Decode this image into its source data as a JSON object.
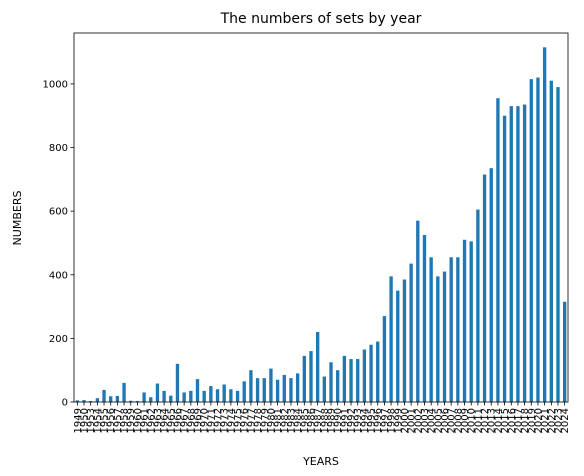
{
  "chart_data": {
    "type": "bar",
    "title": "The numbers of sets by year",
    "xlabel": "YEARS",
    "ylabel": "NUMBERS",
    "ylim": [
      0,
      1160
    ],
    "yticks": [
      0,
      200,
      400,
      600,
      800,
      1000
    ],
    "grid": false,
    "legend": "none",
    "bar_color": "#1f77b4",
    "categories": [
      "1949",
      "1950",
      "1953",
      "1954",
      "1955",
      "1956",
      "1957",
      "1958",
      "1959",
      "1960",
      "1961",
      "1962",
      "1963",
      "1964",
      "1965",
      "1966",
      "1967",
      "1968",
      "1969",
      "1970",
      "1971",
      "1972",
      "1973",
      "1974",
      "1975",
      "1976",
      "1977",
      "1978",
      "1979",
      "1980",
      "1981",
      "1982",
      "1983",
      "1984",
      "1985",
      "1986",
      "1987",
      "1988",
      "1989",
      "1990",
      "1991",
      "1992",
      "1993",
      "1994",
      "1995",
      "1996",
      "1997",
      "1998",
      "1999",
      "2000",
      "2001",
      "2002",
      "2003",
      "2004",
      "2005",
      "2006",
      "2007",
      "2008",
      "2009",
      "2010",
      "2011",
      "2012",
      "2013",
      "2014",
      "2015",
      "2016",
      "2017",
      "2018",
      "2019",
      "2020",
      "2021",
      "2022",
      "2023",
      "2024"
    ],
    "values": [
      5,
      6,
      3,
      12,
      38,
      18,
      19,
      60,
      4,
      3,
      30,
      15,
      58,
      35,
      20,
      120,
      30,
      35,
      72,
      35,
      50,
      40,
      55,
      40,
      35,
      65,
      100,
      75,
      75,
      105,
      70,
      85,
      75,
      90,
      145,
      160,
      220,
      80,
      125,
      100,
      145,
      135,
      135,
      165,
      180,
      190,
      270,
      395,
      350,
      385,
      435,
      570,
      525,
      455,
      395,
      410,
      455,
      455,
      510,
      505,
      605,
      715,
      735,
      955,
      900,
      930,
      930,
      935,
      1015,
      1020,
      1115,
      1010,
      990,
      315
    ]
  }
}
